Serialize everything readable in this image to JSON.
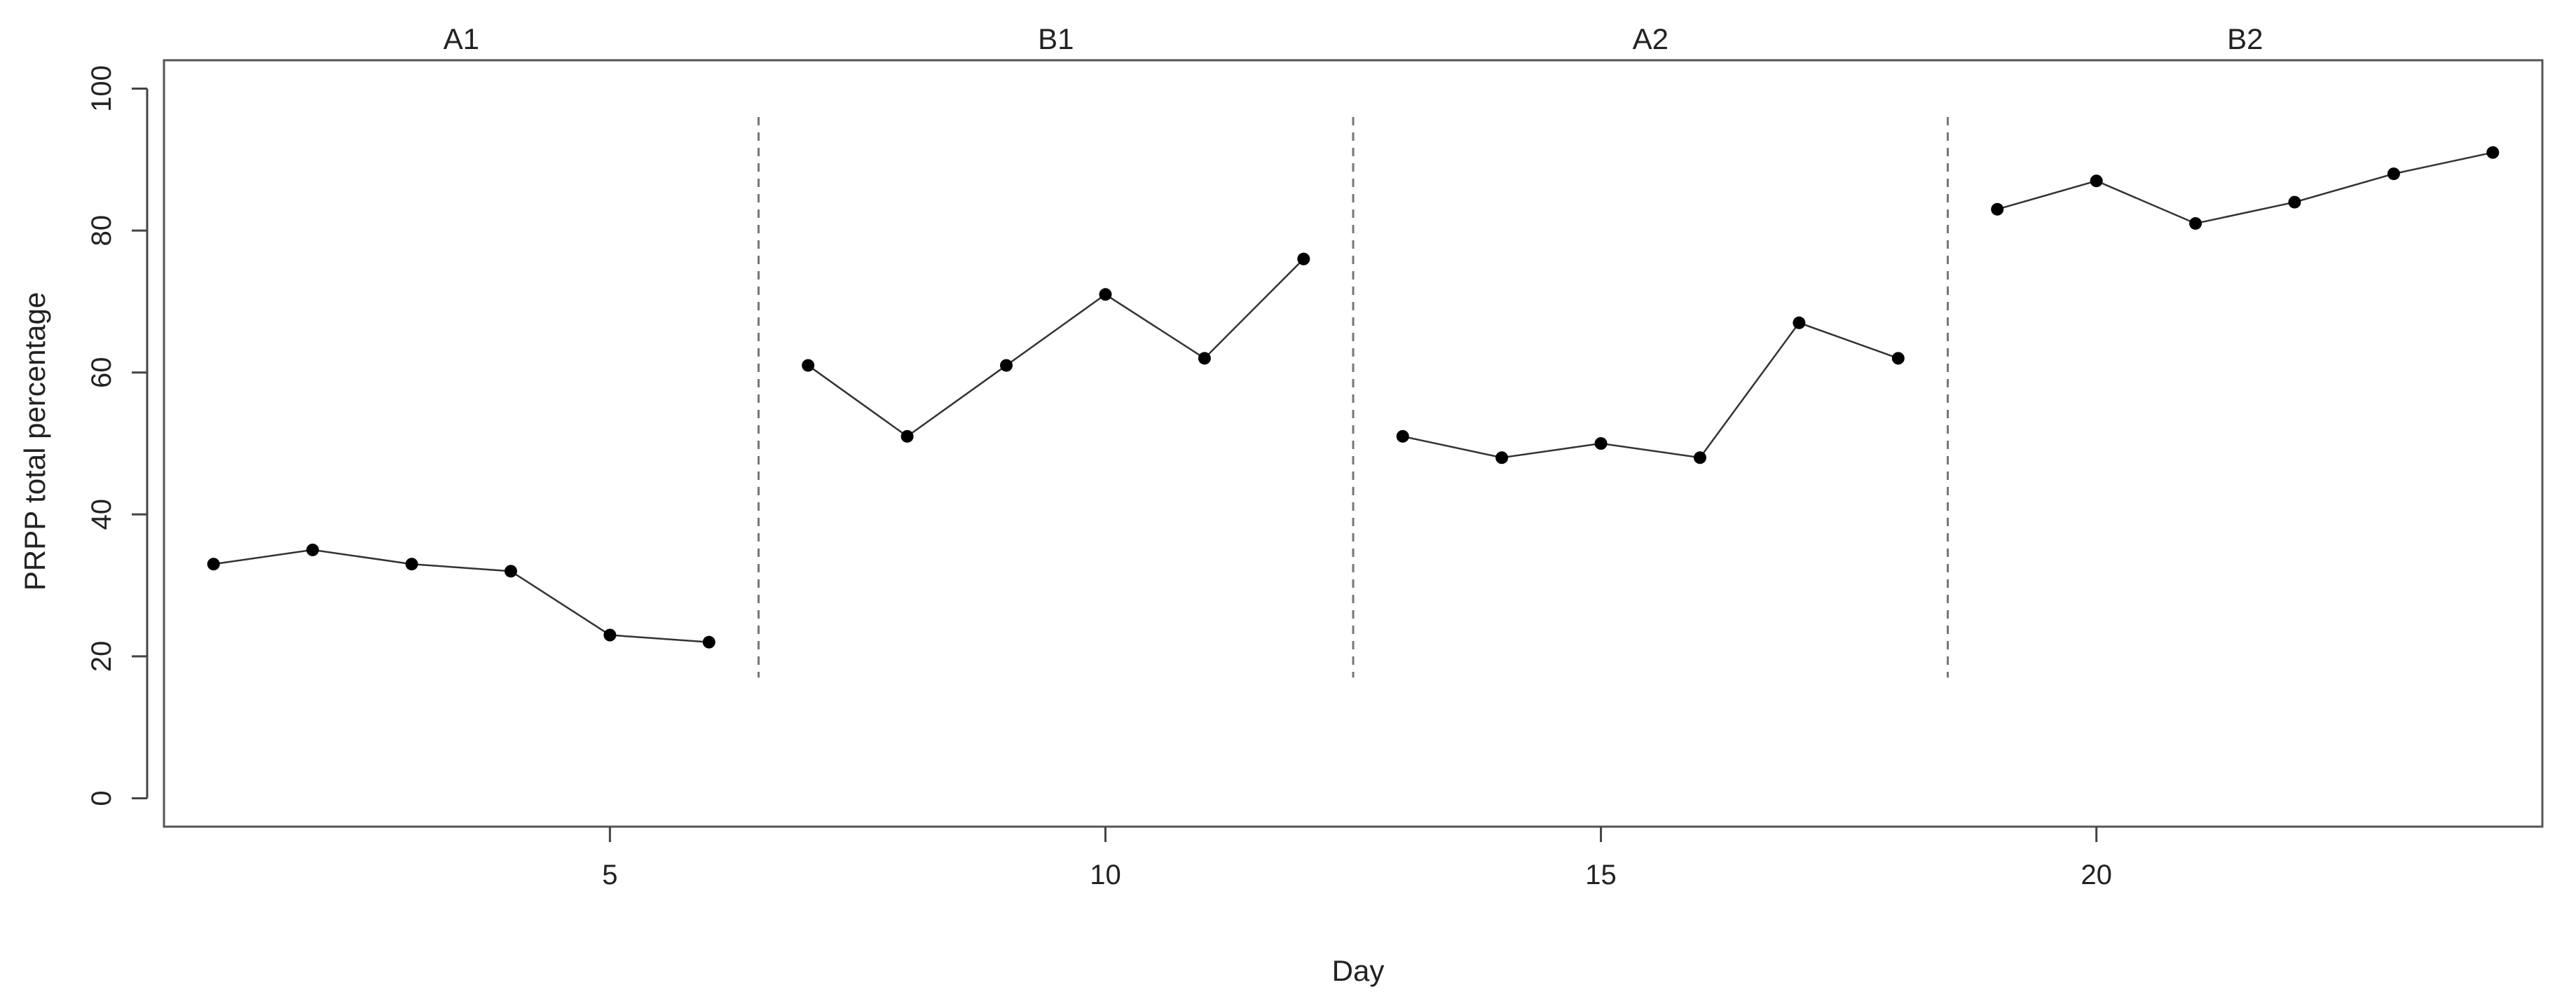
{
  "chart_data": {
    "type": "line",
    "xlabel": "Day",
    "ylabel": "PRPP total percentage",
    "xlim": [
      0.5,
      24.5
    ],
    "ylim": [
      -4,
      104
    ],
    "x_ticks": [
      5,
      10,
      15,
      20
    ],
    "y_ticks": [
      0,
      20,
      40,
      60,
      80,
      100
    ],
    "phase_boundaries": [
      6.5,
      12.5,
      18.5
    ],
    "phase_boundary_y_range": [
      17,
      96
    ],
    "phases": [
      {
        "label": "A1",
        "x": [
          1,
          2,
          3,
          4,
          5,
          6
        ],
        "y": [
          33,
          35,
          33,
          32,
          23,
          22
        ]
      },
      {
        "label": "B1",
        "x": [
          7,
          8,
          9,
          10,
          11,
          12
        ],
        "y": [
          61,
          51,
          61,
          71,
          62,
          76
        ]
      },
      {
        "label": "A2",
        "x": [
          13,
          14,
          15,
          16,
          17,
          18
        ],
        "y": [
          51,
          48,
          50,
          48,
          67,
          62
        ]
      },
      {
        "label": "B2",
        "x": [
          19,
          20,
          21,
          22,
          23,
          24
        ],
        "y": [
          83,
          87,
          81,
          84,
          88,
          91
        ]
      }
    ],
    "grid": false,
    "legend": "none",
    "colors": {
      "line": "#333333",
      "point": "#000000",
      "divider": "#777777",
      "frame": "#555555"
    }
  }
}
